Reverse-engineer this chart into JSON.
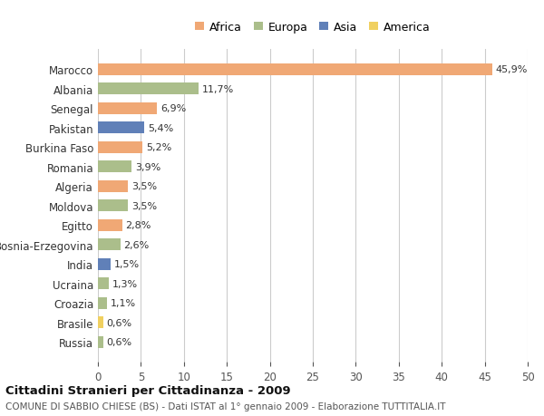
{
  "countries": [
    "Marocco",
    "Albania",
    "Senegal",
    "Pakistan",
    "Burkina Faso",
    "Romania",
    "Algeria",
    "Moldova",
    "Egitto",
    "Bosnia-Erzegovina",
    "India",
    "Ucraina",
    "Croazia",
    "Brasile",
    "Russia"
  ],
  "values": [
    45.9,
    11.7,
    6.9,
    5.4,
    5.2,
    3.9,
    3.5,
    3.5,
    2.8,
    2.6,
    1.5,
    1.3,
    1.1,
    0.6,
    0.6
  ],
  "labels": [
    "45,9%",
    "11,7%",
    "6,9%",
    "5,4%",
    "5,2%",
    "3,9%",
    "3,5%",
    "3,5%",
    "2,8%",
    "2,6%",
    "1,5%",
    "1,3%",
    "1,1%",
    "0,6%",
    "0,6%"
  ],
  "continents": [
    "Africa",
    "Europa",
    "Africa",
    "Asia",
    "Africa",
    "Europa",
    "Africa",
    "Europa",
    "Africa",
    "Europa",
    "Asia",
    "Europa",
    "Europa",
    "America",
    "Europa"
  ],
  "colors": {
    "Africa": "#F0A875",
    "Europa": "#ABBE8B",
    "Asia": "#6080B8",
    "America": "#F0D060"
  },
  "legend_order": [
    "Africa",
    "Europa",
    "Asia",
    "America"
  ],
  "xlim": [
    0,
    50
  ],
  "xticks": [
    0,
    5,
    10,
    15,
    20,
    25,
    30,
    35,
    40,
    45,
    50
  ],
  "title": "Cittadini Stranieri per Cittadinanza - 2009",
  "subtitle": "COMUNE DI SABBIO CHIESE (BS) - Dati ISTAT al 1° gennaio 2009 - Elaborazione TUTTITALIA.IT",
  "bg_color": "#ffffff",
  "grid_color": "#cccccc",
  "bar_height": 0.6
}
